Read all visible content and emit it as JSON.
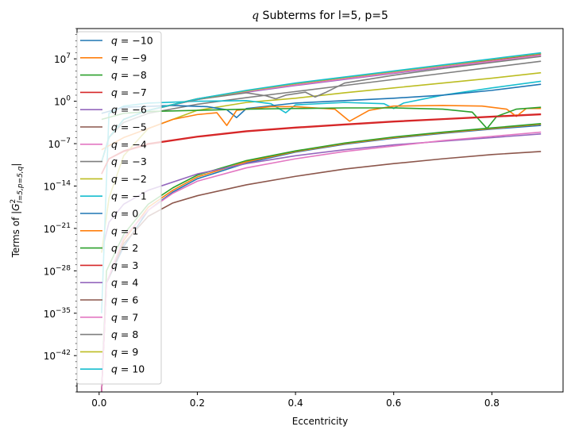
{
  "chart_data": {
    "type": "line",
    "title": "q Subterms for l=5, p=5",
    "xlabel": "Eccentricity",
    "ylabel": "Terms of |G²_{l=5,p=5,q}|",
    "y_scale": "log",
    "grid": false,
    "legend_position": "upper left",
    "xlim": [
      -0.045,
      0.945
    ],
    "ylim_exp": [
      -48,
      12
    ],
    "x_ticks": [
      0.0,
      0.2,
      0.4,
      0.6,
      0.8
    ],
    "x_tick_labels": [
      "0.0",
      "0.2",
      "0.4",
      "0.6",
      "0.8"
    ],
    "y_ticks_exp": [
      7,
      0,
      -7,
      -14,
      -21,
      -28,
      -35,
      -42
    ],
    "series": [
      {
        "name": "q = −10",
        "color": "#1f77b4",
        "log10_points": [
          [
            0.005,
            -48
          ],
          [
            0.015,
            -30
          ],
          [
            0.05,
            -24
          ],
          [
            0.1,
            -18
          ],
          [
            0.15,
            -15
          ],
          [
            0.2,
            -12.8
          ],
          [
            0.3,
            -10.2
          ],
          [
            0.4,
            -8.4
          ],
          [
            0.5,
            -7.1
          ],
          [
            0.6,
            -6.1
          ],
          [
            0.7,
            -5.3
          ],
          [
            0.8,
            -4.6
          ],
          [
            0.9,
            -4.0
          ]
        ]
      },
      {
        "name": "q = −9",
        "color": "#ff7f0e",
        "log10_points": [
          [
            0.005,
            -48
          ],
          [
            0.015,
            -30
          ],
          [
            0.05,
            -23
          ],
          [
            0.1,
            -17.5
          ],
          [
            0.15,
            -14.7
          ],
          [
            0.2,
            -12.5
          ],
          [
            0.3,
            -10
          ],
          [
            0.4,
            -8.3
          ],
          [
            0.5,
            -7
          ],
          [
            0.6,
            -6.0
          ],
          [
            0.7,
            -5.2
          ],
          [
            0.8,
            -4.5
          ],
          [
            0.9,
            -3.8
          ]
        ]
      },
      {
        "name": "q = −8",
        "color": "#2ca02c",
        "log10_points": [
          [
            0.005,
            -48
          ],
          [
            0.015,
            -28
          ],
          [
            0.05,
            -22
          ],
          [
            0.1,
            -17
          ],
          [
            0.15,
            -14.3
          ],
          [
            0.2,
            -12.2
          ],
          [
            0.3,
            -9.8
          ],
          [
            0.4,
            -8.2
          ],
          [
            0.5,
            -6.9
          ],
          [
            0.6,
            -5.9
          ],
          [
            0.7,
            -5.1
          ],
          [
            0.8,
            -4.4
          ],
          [
            0.9,
            -3.7
          ]
        ]
      },
      {
        "name": "q = −7",
        "color": "#d62728",
        "log10_points": [
          [
            0.005,
            -12
          ],
          [
            0.02,
            -9.5
          ],
          [
            0.05,
            -8.2
          ],
          [
            0.1,
            -7
          ],
          [
            0.2,
            -5.8
          ],
          [
            0.3,
            -4.9
          ],
          [
            0.4,
            -4.3
          ],
          [
            0.5,
            -3.8
          ],
          [
            0.6,
            -3.3
          ],
          [
            0.7,
            -2.9
          ],
          [
            0.8,
            -2.5
          ],
          [
            0.9,
            -2.1
          ]
        ]
      },
      {
        "name": "q = −6",
        "color": "#9467bd",
        "log10_points": [
          [
            0.005,
            -25
          ],
          [
            0.02,
            -20
          ],
          [
            0.05,
            -17
          ],
          [
            0.1,
            -14.7
          ],
          [
            0.2,
            -12
          ],
          [
            0.3,
            -10.3
          ],
          [
            0.4,
            -9
          ],
          [
            0.5,
            -8
          ],
          [
            0.6,
            -7.2
          ],
          [
            0.7,
            -6.6
          ],
          [
            0.8,
            -6.0
          ],
          [
            0.9,
            -5.4
          ]
        ]
      },
      {
        "name": "q = −5",
        "color": "#8c564b",
        "log10_points": [
          [
            0.005,
            -48
          ],
          [
            0.015,
            -30
          ],
          [
            0.05,
            -23.5
          ],
          [
            0.1,
            -19
          ],
          [
            0.15,
            -16.8
          ],
          [
            0.2,
            -15.6
          ],
          [
            0.3,
            -13.8
          ],
          [
            0.4,
            -12.4
          ],
          [
            0.5,
            -11.2
          ],
          [
            0.6,
            -10.3
          ],
          [
            0.7,
            -9.5
          ],
          [
            0.8,
            -8.8
          ],
          [
            0.9,
            -8.3
          ]
        ]
      },
      {
        "name": "q = −4",
        "color": "#e377c2",
        "log10_points": [
          [
            0.005,
            -48
          ],
          [
            0.015,
            -30
          ],
          [
            0.05,
            -22.5
          ],
          [
            0.1,
            -18
          ],
          [
            0.15,
            -15.2
          ],
          [
            0.2,
            -13.2
          ],
          [
            0.3,
            -11
          ],
          [
            0.4,
            -9.5
          ],
          [
            0.5,
            -8.3
          ],
          [
            0.6,
            -7.4
          ],
          [
            0.7,
            -6.5
          ],
          [
            0.8,
            -5.8
          ],
          [
            0.9,
            -5.1
          ]
        ]
      },
      {
        "name": "q = −3",
        "color": "#7f7f7f",
        "log10_points": [
          [
            0.005,
            -10
          ],
          [
            0.02,
            -6
          ],
          [
            0.05,
            -3.5
          ],
          [
            0.1,
            -2
          ],
          [
            0.2,
            -0.5
          ],
          [
            0.3,
            0.6
          ],
          [
            0.4,
            1.6
          ],
          [
            0.5,
            2.6
          ],
          [
            0.6,
            3.6
          ],
          [
            0.7,
            4.6
          ],
          [
            0.8,
            5.6
          ],
          [
            0.9,
            6.6
          ]
        ]
      },
      {
        "name": "q = −2",
        "color": "#bcbd22",
        "log10_points": [
          [
            0.005,
            -25
          ],
          [
            0.02,
            -16
          ],
          [
            0.05,
            -9
          ],
          [
            0.1,
            -4.5
          ],
          [
            0.2,
            -1.5
          ],
          [
            0.3,
            -0.2
          ],
          [
            0.4,
            0.5
          ],
          [
            0.5,
            1.4
          ],
          [
            0.6,
            2.2
          ],
          [
            0.7,
            3.0
          ],
          [
            0.8,
            3.8
          ],
          [
            0.9,
            4.7
          ]
        ]
      },
      {
        "name": "q = −1",
        "color": "#17becf",
        "log10_points": [
          [
            0.005,
            -35
          ],
          [
            0.02,
            -2
          ],
          [
            0.05,
            -0.8
          ],
          [
            0.1,
            -0.3
          ],
          [
            0.2,
            0
          ],
          [
            0.3,
            0.1
          ],
          [
            0.35,
            -0.4
          ],
          [
            0.38,
            -1.9
          ],
          [
            0.4,
            -0.6
          ],
          [
            0.5,
            -0.2
          ],
          [
            0.58,
            -0.4
          ],
          [
            0.6,
            -1.2
          ],
          [
            0.62,
            -0.3
          ],
          [
            0.7,
            1
          ],
          [
            0.8,
            2.2
          ],
          [
            0.9,
            3.3
          ]
        ]
      },
      {
        "name": "q = 0",
        "color": "#1f77b4",
        "log10_points": [
          [
            0.005,
            -2
          ],
          [
            0.05,
            -1
          ],
          [
            0.15,
            -0.7
          ],
          [
            0.22,
            -0.9
          ],
          [
            0.26,
            -1.4
          ],
          [
            0.28,
            -2.7
          ],
          [
            0.3,
            -1.2
          ],
          [
            0.4,
            -0.3
          ],
          [
            0.5,
            0.1
          ],
          [
            0.6,
            0.5
          ],
          [
            0.7,
            1.0
          ],
          [
            0.8,
            1.8
          ],
          [
            0.9,
            2.8
          ]
        ]
      },
      {
        "name": "q = 1",
        "color": "#ff7f0e",
        "log10_points": [
          [
            0.005,
            -8
          ],
          [
            0.05,
            -6
          ],
          [
            0.1,
            -4.5
          ],
          [
            0.15,
            -3
          ],
          [
            0.2,
            -2.2
          ],
          [
            0.24,
            -1.9
          ],
          [
            0.26,
            -4.0
          ],
          [
            0.28,
            -1.5
          ],
          [
            0.35,
            -0.9
          ],
          [
            0.4,
            -0.9
          ],
          [
            0.48,
            -1.3
          ],
          [
            0.51,
            -3.3
          ],
          [
            0.55,
            -1.5
          ],
          [
            0.6,
            -0.8
          ],
          [
            0.7,
            -0.7
          ],
          [
            0.78,
            -0.8
          ],
          [
            0.83,
            -1.3
          ],
          [
            0.85,
            -2.5
          ],
          [
            0.87,
            -1.2
          ],
          [
            0.9,
            -1.2
          ]
        ]
      },
      {
        "name": "q = 2",
        "color": "#2ca02c",
        "log10_points": [
          [
            0.005,
            -3
          ],
          [
            0.05,
            -2
          ],
          [
            0.1,
            -1.7
          ],
          [
            0.2,
            -1.5
          ],
          [
            0.3,
            -1.3
          ],
          [
            0.4,
            -1.2
          ],
          [
            0.5,
            -1.1
          ],
          [
            0.6,
            -1.1
          ],
          [
            0.7,
            -1.3
          ],
          [
            0.76,
            -1.8
          ],
          [
            0.79,
            -4.5
          ],
          [
            0.81,
            -2.5
          ],
          [
            0.85,
            -1.3
          ],
          [
            0.9,
            -1.0
          ]
        ]
      },
      {
        "name": "q = 3",
        "color": "#d62728",
        "log10_points": [
          [
            0.005,
            -12
          ],
          [
            0.02,
            -9.5
          ],
          [
            0.05,
            -8.3
          ],
          [
            0.1,
            -7.1
          ],
          [
            0.2,
            -5.9
          ],
          [
            0.3,
            -5.0
          ],
          [
            0.4,
            -4.4
          ],
          [
            0.5,
            -3.9
          ],
          [
            0.6,
            -3.4
          ],
          [
            0.7,
            -3.0
          ],
          [
            0.8,
            -2.6
          ],
          [
            0.9,
            -2.2
          ]
        ]
      },
      {
        "name": "q = 4",
        "color": "#9467bd",
        "log10_points": [
          [
            0.005,
            -10
          ],
          [
            0.02,
            -6
          ],
          [
            0.05,
            -3
          ],
          [
            0.1,
            -1.5
          ],
          [
            0.2,
            0.3
          ],
          [
            0.3,
            1.5
          ],
          [
            0.4,
            2.6
          ],
          [
            0.5,
            3.6
          ],
          [
            0.6,
            4.6
          ],
          [
            0.7,
            5.6
          ],
          [
            0.8,
            6.5
          ],
          [
            0.9,
            7.5
          ]
        ]
      },
      {
        "name": "q = 6",
        "color": "#8c564b",
        "log10_points": [
          [
            0.005,
            -10
          ],
          [
            0.02,
            -6
          ],
          [
            0.05,
            -3
          ],
          [
            0.1,
            -1.5
          ],
          [
            0.2,
            0.4
          ],
          [
            0.3,
            1.7
          ],
          [
            0.4,
            2.8
          ],
          [
            0.5,
            3.8
          ],
          [
            0.6,
            4.8
          ],
          [
            0.7,
            5.8
          ],
          [
            0.8,
            6.8
          ],
          [
            0.9,
            7.8
          ]
        ]
      },
      {
        "name": "q = 7",
        "color": "#e377c2",
        "log10_points": [
          [
            0.005,
            -10
          ],
          [
            0.02,
            -6
          ],
          [
            0.05,
            -3
          ],
          [
            0.1,
            -1.5
          ],
          [
            0.2,
            0.3
          ],
          [
            0.3,
            1.6
          ],
          [
            0.4,
            2.7
          ],
          [
            0.5,
            3.7
          ],
          [
            0.6,
            4.7
          ],
          [
            0.7,
            5.7
          ],
          [
            0.8,
            6.6
          ],
          [
            0.9,
            7.6
          ]
        ]
      },
      {
        "name": "q = 8",
        "color": "#7f7f7f",
        "log10_points": [
          [
            0.005,
            -10
          ],
          [
            0.02,
            -6
          ],
          [
            0.05,
            -3
          ],
          [
            0.1,
            -1.5
          ],
          [
            0.2,
            0.3
          ],
          [
            0.3,
            1.4
          ],
          [
            0.34,
            0.9
          ],
          [
            0.36,
            0.4
          ],
          [
            0.38,
            1.0
          ],
          [
            0.42,
            1.5
          ],
          [
            0.44,
            0.7
          ],
          [
            0.46,
            1.4
          ],
          [
            0.5,
            3.0
          ],
          [
            0.6,
            4.3
          ],
          [
            0.7,
            5.4
          ],
          [
            0.8,
            6.4
          ],
          [
            0.9,
            7.4
          ]
        ]
      },
      {
        "name": "q = 9",
        "color": "#bcbd22",
        "log10_points": [
          [
            0.005,
            -10
          ],
          [
            0.02,
            -6
          ],
          [
            0.05,
            -3
          ],
          [
            0.1,
            -1.5
          ],
          [
            0.2,
            0.4
          ],
          [
            0.3,
            1.7
          ],
          [
            0.4,
            2.9
          ],
          [
            0.5,
            3.9
          ],
          [
            0.6,
            4.9
          ],
          [
            0.7,
            5.9
          ],
          [
            0.8,
            6.9
          ],
          [
            0.9,
            7.9
          ]
        ]
      },
      {
        "name": "q = 10",
        "color": "#17becf",
        "log10_points": [
          [
            0.005,
            -10
          ],
          [
            0.02,
            -6
          ],
          [
            0.05,
            -3
          ],
          [
            0.1,
            -1.5
          ],
          [
            0.2,
            0.4
          ],
          [
            0.3,
            1.8
          ],
          [
            0.4,
            3.0
          ],
          [
            0.5,
            4.0
          ],
          [
            0.6,
            5.0
          ],
          [
            0.7,
            6.0
          ],
          [
            0.8,
            7.0
          ],
          [
            0.9,
            8.0
          ]
        ]
      }
    ]
  }
}
